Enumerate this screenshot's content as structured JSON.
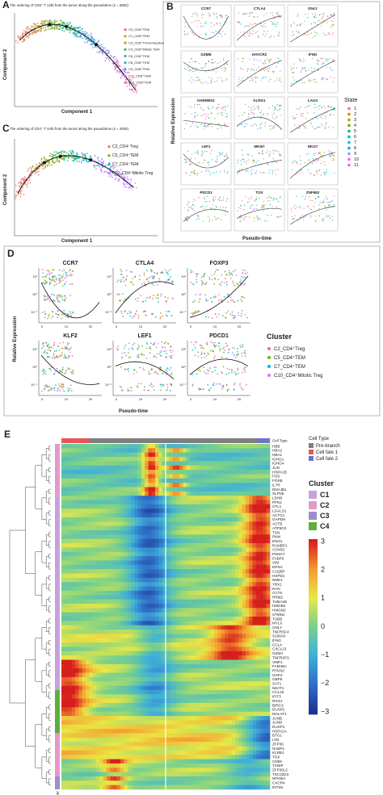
{
  "panel_a": {
    "label": "A",
    "title": "The ordering of CD8⁺ T cells from the tumor along the pseudotime (n = 6802)",
    "x_label": "Component 1",
    "y_label": "Component 2",
    "legend": [
      "C0_CD8⁺TEM",
      "C1_CD8⁺TEM",
      "C3_CD8⁺Trm/exhausted",
      "C4_CD8⁺Mitotic TEM",
      "C6_CD8⁺TEM",
      "C8_CD8⁺TEM",
      "C9_CD8⁺TEM",
      "C11_CD8⁺TEM",
      "C12_CD8⁺TEM"
    ],
    "colors": [
      "#e8736b",
      "#d89a30",
      "#a8aa20",
      "#4cb050",
      "#2eb89a",
      "#2aaed8",
      "#6c8ef0",
      "#b47ef0",
      "#f070c0"
    ]
  },
  "panel_b": {
    "label": "B",
    "genes": [
      "CCR7",
      "CTLA4",
      "GNLY",
      "GZMB",
      "HAVCR2",
      "IFNG",
      "KHDRBS1",
      "KLRG1",
      "LAG3",
      "LEF1",
      "MKI67",
      "NKG7",
      "PDCD1",
      "TOX",
      "ZNF683"
    ],
    "y_label": "Relative Expression",
    "x_label": "Pseudo-time",
    "legend_title": "State",
    "states": [
      "1",
      "2",
      "3",
      "4",
      "5",
      "6",
      "7",
      "8",
      "9",
      "10",
      "11"
    ],
    "colors": [
      "#f8766d",
      "#db8e00",
      "#aea200",
      "#64b200",
      "#00bd5c",
      "#00c1a7",
      "#00bade",
      "#00a6ff",
      "#b385ff",
      "#ef67eb",
      "#ff63b6"
    ]
  },
  "panel_c": {
    "label": "C",
    "title": "The ordering of CD4⁺ T cells from the tumor along the pseudotime (n = 2830)",
    "x_label": "Component 1",
    "y_label": "Component 2",
    "legend": [
      "C2_CD4⁺Treg",
      "C5_CD4⁺TEM",
      "C7_CD4⁺TEM",
      "C10_CD4⁺Mitotic Treg"
    ],
    "colors": [
      "#f0736b",
      "#7cae00",
      "#00bfc4",
      "#c77cff"
    ]
  },
  "panel_d": {
    "label": "D",
    "genes": [
      "CCR7",
      "CTLA4",
      "FOXP3",
      "KLF2",
      "LEF1",
      "PDCD1"
    ],
    "y_label": "Relative Expression",
    "x_label": "Pseudo-time",
    "legend_title": "Cluster",
    "legend": [
      "C2_CD4⁺Treg",
      "C5_CD4⁺TEM",
      "C7_CD4⁺TEM",
      "C10_CD4⁺Mitotic Treg"
    ],
    "colors": [
      "#f0736b",
      "#7cae00",
      "#00bfc4",
      "#c77cff"
    ],
    "y_ticks": [
      "10¹",
      "10⁰",
      "10⁻¹"
    ],
    "x_ticks": [
      "0",
      "10",
      "20"
    ]
  },
  "panel_e": {
    "label": "E",
    "cell_type_axis_label": "Cell Type",
    "cluster_axis_label": "Cluster",
    "genes": [
      "HBB",
      "HBA2",
      "HBA1",
      "IGHG1",
      "IGHG4",
      "JUN",
      "HSPA1B",
      "FOS",
      "FOSB",
      "IL7R",
      "DNAJB1",
      "SLFN5",
      "LDHB",
      "PFN1",
      "CFL1",
      "LGALS1",
      "ACTG1",
      "GAPDH",
      "ACTB",
      "ATP5G3",
      "TXN",
      "PKM",
      "ENO1",
      "RANBP1",
      "COX6C",
      "PSMA7",
      "FABP5",
      "VIM",
      "EIF5A",
      "C1QBP",
      "HSPD1",
      "NME1",
      "YBX1",
      "RAN",
      "CCT6",
      "RRM2",
      "TUBA1B",
      "HMGB2",
      "HMGN2",
      "STMN1",
      "TUBB",
      "MYL6",
      "GNLY",
      "TNFRSF4",
      "S100A4",
      "IFNG",
      "CCL4",
      "CXCL13",
      "GZMA",
      "TNFRSF9",
      "VMP1",
      "FAM46C",
      "RTKN2",
      "UGP2",
      "GBP5",
      "SAT1",
      "NEAT1",
      "CCL20",
      "IFIT3",
      "RGS1",
      "BIRC3",
      "DUSP2",
      "MALAT1",
      "JUNB",
      "JUND",
      "DUSP1",
      "HSPA1A",
      "BTG1",
      "LTB",
      "ZFP36",
      "NABP1",
      "KLRB1",
      "TOX",
      "CD69",
      "TXNIP",
      "ZFP36L2",
      "TSC22D3",
      "NFKBIA",
      "CXCR4",
      "INTS6"
    ],
    "cell_type_title": "Cell Type",
    "cell_types": [
      "Pre-branch",
      "Cell fate 1",
      "Cell fate 2"
    ],
    "cell_type_colors": [
      "#7f7f7f",
      "#e8565b",
      "#6f74c8"
    ],
    "cluster_title": "Cluster",
    "clusters": [
      "C1",
      "C2",
      "C3",
      "C4"
    ],
    "cluster_colors": [
      "#c6a2dc",
      "#e49ac8",
      "#9d8fc8",
      "#5fae3c"
    ],
    "colorbar_ticks": [
      "3",
      "2",
      "1",
      "0",
      "−1",
      "−2",
      "−3"
    ]
  }
}
